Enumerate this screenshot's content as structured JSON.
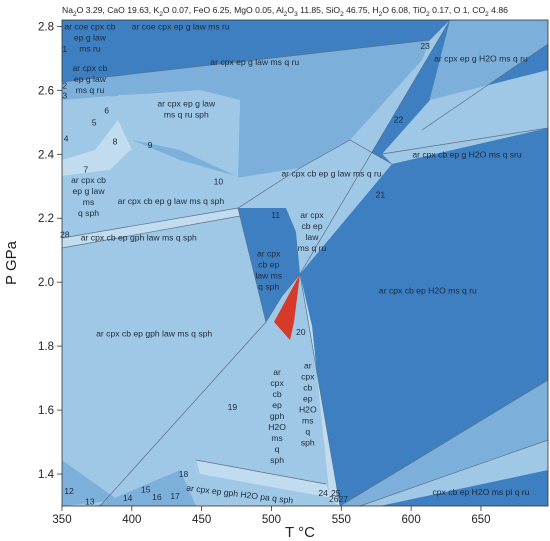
{
  "chart_data": {
    "type": "phase-diagram",
    "title_parts": [
      {
        "t": "Na"
      },
      {
        "t": "2",
        "sub": true
      },
      {
        "t": "O 3.29, CaO 19.63, K"
      },
      {
        "t": "2",
        "sub": true
      },
      {
        "t": "O 0.07, FeO 6.25, MgO 0.05, Al"
      },
      {
        "t": "2",
        "sub": true
      },
      {
        "t": "O"
      },
      {
        "t": "3",
        "sub": true
      },
      {
        "t": " 11.85, SiO"
      },
      {
        "t": "2",
        "sub": true
      },
      {
        "t": " 46.75, H"
      },
      {
        "t": "2",
        "sub": true
      },
      {
        "t": "O 6.08, TiO"
      },
      {
        "t": "2",
        "sub": true
      },
      {
        "t": " 0.17, O 1, CO"
      },
      {
        "t": "2",
        "sub": true
      },
      {
        "t": " 4.86"
      }
    ],
    "xlabel": "T °C",
    "ylabel": "P GPa",
    "xlim": [
      350,
      698
    ],
    "ylim": [
      1.3,
      2.82
    ],
    "xticks": [
      "350",
      "400",
      "450",
      "500",
      "550",
      "600",
      "650"
    ],
    "yticks": [
      "1.4",
      "1.6",
      "1.8",
      "2.0",
      "2.2",
      "2.4",
      "2.6",
      "2.8"
    ],
    "fields": [
      {
        "lines": [
          "ar coe cpx cb",
          "ep g law",
          "ms ru"
        ],
        "at": [
          370,
          2.79
        ]
      },
      {
        "lines": [
          "ar coe cpx ep g law ms ru"
        ],
        "at": [
          435,
          2.79
        ]
      },
      {
        "lines": [
          "ar cpx cb",
          "ep g law",
          "ms q ru"
        ],
        "at": [
          370,
          2.66
        ]
      },
      {
        "lines": [
          "ar cpx ep g law",
          "ms q ru sph"
        ],
        "at": [
          439,
          2.55
        ]
      },
      {
        "lines": [
          "ar cpx ep g law ms q ru"
        ],
        "at": [
          488,
          2.68
        ]
      },
      {
        "lines": [
          "ar cpx ep g H2O ms q ru"
        ],
        "at": [
          650,
          2.69
        ]
      },
      {
        "lines": [
          "ar cpx cb ep g H2O ms q sru"
        ],
        "at": [
          640,
          2.39
        ]
      },
      {
        "lines": [
          "ar cpx cb",
          "ep g law",
          "ms",
          "q sph"
        ],
        "at": [
          369,
          2.31
        ]
      },
      {
        "lines": [
          "ar cpx cb ep g law ms q sph"
        ],
        "at": [
          428,
          2.244
        ]
      },
      {
        "lines": [
          "ar cpx cb ep g law ms q ru"
        ],
        "at": [
          543,
          2.33
        ]
      },
      {
        "lines": [
          "ar cpx cb ep gph law ms q sph"
        ],
        "at": [
          405,
          2.13
        ]
      },
      {
        "lines": [
          "ar cpx",
          "cb ep",
          "law",
          "ms q ru"
        ],
        "at": [
          529,
          2.2
        ]
      },
      {
        "lines": [
          "ar cpx",
          "cb ep",
          "law ms",
          "q sph"
        ],
        "at": [
          498,
          2.08
        ]
      },
      {
        "lines": [
          "ar cpx cb ep H2O ms q ru"
        ],
        "at": [
          612,
          1.965
        ]
      },
      {
        "lines": [
          "ar cpx cb ep gph law ms q sph"
        ],
        "at": [
          416,
          1.83
        ]
      },
      {
        "lines": [
          "ar",
          "cpx",
          "cb",
          "ep",
          "gph",
          "H2O",
          "ms",
          "q",
          "sph"
        ],
        "at": [
          504,
          1.71
        ]
      },
      {
        "lines": [
          "ar",
          "cpx",
          "cb",
          "ep",
          "H2O",
          "ms",
          "q",
          "sph"
        ],
        "at": [
          526,
          1.73
        ]
      },
      {
        "lines": [
          "ar cpx ep gph H2O pa q sph"
        ],
        "at": [
          477,
          1.328
        ],
        "rot": 7
      },
      {
        "lines": [
          "cpx cb ep H2O ms pl q ru"
        ],
        "at": [
          650,
          1.335
        ]
      }
    ],
    "numbers": [
      {
        "n": "1",
        "at": [
          352,
          2.72
        ]
      },
      {
        "n": "2",
        "at": [
          352,
          2.606
        ]
      },
      {
        "n": "3",
        "at": [
          352,
          2.575
        ]
      },
      {
        "n": "4",
        "at": [
          353,
          2.44
        ]
      },
      {
        "n": "5",
        "at": [
          373,
          2.49
        ]
      },
      {
        "n": "6",
        "at": [
          382,
          2.528
        ]
      },
      {
        "n": "7",
        "at": [
          367,
          2.343
        ]
      },
      {
        "n": "8",
        "at": [
          388,
          2.43
        ]
      },
      {
        "n": "9",
        "at": [
          413,
          2.42
        ]
      },
      {
        "n": "10",
        "at": [
          462,
          2.305
        ]
      },
      {
        "n": "11",
        "at": [
          503,
          2.2
        ]
      },
      {
        "n": "12",
        "at": [
          355,
          1.338
        ]
      },
      {
        "n": "13",
        "at": [
          370,
          1.305
        ]
      },
      {
        "n": "14",
        "at": [
          397,
          1.315
        ]
      },
      {
        "n": "15",
        "at": [
          410,
          1.343
        ]
      },
      {
        "n": "16",
        "at": [
          418,
          1.319
        ]
      },
      {
        "n": "17",
        "at": [
          431,
          1.322
        ]
      },
      {
        "n": "18",
        "at": [
          437,
          1.39
        ]
      },
      {
        "n": "19",
        "at": [
          472,
          1.601
        ]
      },
      {
        "n": "20",
        "at": [
          521,
          1.835
        ]
      },
      {
        "n": "21",
        "at": [
          578,
          2.265
        ]
      },
      {
        "n": "22",
        "at": [
          591,
          2.5
        ]
      },
      {
        "n": "23",
        "at": [
          610,
          2.73
        ]
      },
      {
        "n": "24",
        "at": [
          537,
          1.331
        ]
      },
      {
        "n": "25",
        "at": [
          546,
          1.331
        ]
      },
      {
        "n": "2627",
        "at": [
          548,
          1.313
        ]
      },
      {
        "n": "28",
        "at": [
          352,
          2.14
        ]
      }
    ],
    "colors": {
      "light": "#9fc8e6",
      "lighter": "#c0dcee",
      "mid": "#7cb0da",
      "dark": "#3d7fc1",
      "red": "#d83a2a"
    }
  }
}
